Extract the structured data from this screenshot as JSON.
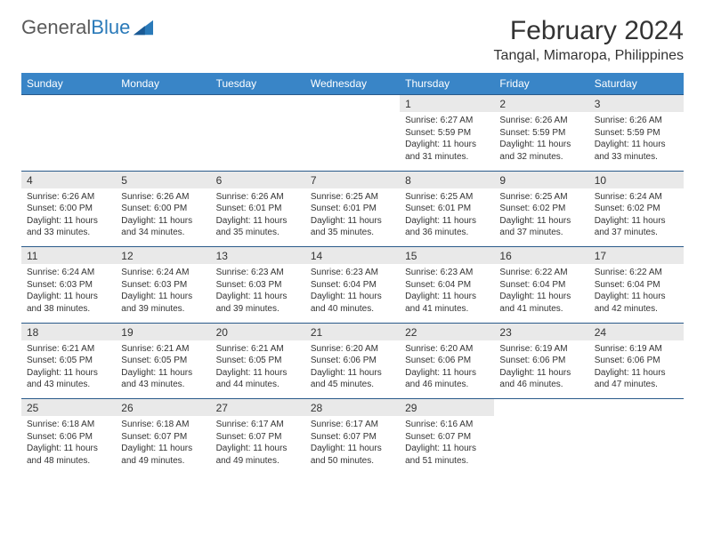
{
  "brand": {
    "name_part1": "General",
    "name_part2": "Blue"
  },
  "header": {
    "month_title": "February 2024",
    "location": "Tangal, Mimaropa, Philippines"
  },
  "colors": {
    "header_bg": "#3985c7",
    "header_text": "#ffffff",
    "daynum_bg": "#e9e9e9",
    "border": "#2a5a8a",
    "text": "#333333",
    "brand_blue": "#2a7ab9",
    "brand_gray": "#5a5a5a",
    "background": "#ffffff"
  },
  "typography": {
    "month_title_size": 30,
    "location_size": 16,
    "dayheader_size": 12,
    "daynum_size": 12,
    "detail_size": 10
  },
  "day_headers": [
    "Sunday",
    "Monday",
    "Tuesday",
    "Wednesday",
    "Thursday",
    "Friday",
    "Saturday"
  ],
  "weeks": [
    {
      "nums": [
        "",
        "",
        "",
        "",
        "1",
        "2",
        "3"
      ],
      "details": [
        null,
        null,
        null,
        null,
        {
          "sunrise": "Sunrise: 6:27 AM",
          "sunset": "Sunset: 5:59 PM",
          "day1": "Daylight: 11 hours",
          "day2": "and 31 minutes."
        },
        {
          "sunrise": "Sunrise: 6:26 AM",
          "sunset": "Sunset: 5:59 PM",
          "day1": "Daylight: 11 hours",
          "day2": "and 32 minutes."
        },
        {
          "sunrise": "Sunrise: 6:26 AM",
          "sunset": "Sunset: 5:59 PM",
          "day1": "Daylight: 11 hours",
          "day2": "and 33 minutes."
        }
      ]
    },
    {
      "nums": [
        "4",
        "5",
        "6",
        "7",
        "8",
        "9",
        "10"
      ],
      "details": [
        {
          "sunrise": "Sunrise: 6:26 AM",
          "sunset": "Sunset: 6:00 PM",
          "day1": "Daylight: 11 hours",
          "day2": "and 33 minutes."
        },
        {
          "sunrise": "Sunrise: 6:26 AM",
          "sunset": "Sunset: 6:00 PM",
          "day1": "Daylight: 11 hours",
          "day2": "and 34 minutes."
        },
        {
          "sunrise": "Sunrise: 6:26 AM",
          "sunset": "Sunset: 6:01 PM",
          "day1": "Daylight: 11 hours",
          "day2": "and 35 minutes."
        },
        {
          "sunrise": "Sunrise: 6:25 AM",
          "sunset": "Sunset: 6:01 PM",
          "day1": "Daylight: 11 hours",
          "day2": "and 35 minutes."
        },
        {
          "sunrise": "Sunrise: 6:25 AM",
          "sunset": "Sunset: 6:01 PM",
          "day1": "Daylight: 11 hours",
          "day2": "and 36 minutes."
        },
        {
          "sunrise": "Sunrise: 6:25 AM",
          "sunset": "Sunset: 6:02 PM",
          "day1": "Daylight: 11 hours",
          "day2": "and 37 minutes."
        },
        {
          "sunrise": "Sunrise: 6:24 AM",
          "sunset": "Sunset: 6:02 PM",
          "day1": "Daylight: 11 hours",
          "day2": "and 37 minutes."
        }
      ]
    },
    {
      "nums": [
        "11",
        "12",
        "13",
        "14",
        "15",
        "16",
        "17"
      ],
      "details": [
        {
          "sunrise": "Sunrise: 6:24 AM",
          "sunset": "Sunset: 6:03 PM",
          "day1": "Daylight: 11 hours",
          "day2": "and 38 minutes."
        },
        {
          "sunrise": "Sunrise: 6:24 AM",
          "sunset": "Sunset: 6:03 PM",
          "day1": "Daylight: 11 hours",
          "day2": "and 39 minutes."
        },
        {
          "sunrise": "Sunrise: 6:23 AM",
          "sunset": "Sunset: 6:03 PM",
          "day1": "Daylight: 11 hours",
          "day2": "and 39 minutes."
        },
        {
          "sunrise": "Sunrise: 6:23 AM",
          "sunset": "Sunset: 6:04 PM",
          "day1": "Daylight: 11 hours",
          "day2": "and 40 minutes."
        },
        {
          "sunrise": "Sunrise: 6:23 AM",
          "sunset": "Sunset: 6:04 PM",
          "day1": "Daylight: 11 hours",
          "day2": "and 41 minutes."
        },
        {
          "sunrise": "Sunrise: 6:22 AM",
          "sunset": "Sunset: 6:04 PM",
          "day1": "Daylight: 11 hours",
          "day2": "and 41 minutes."
        },
        {
          "sunrise": "Sunrise: 6:22 AM",
          "sunset": "Sunset: 6:04 PM",
          "day1": "Daylight: 11 hours",
          "day2": "and 42 minutes."
        }
      ]
    },
    {
      "nums": [
        "18",
        "19",
        "20",
        "21",
        "22",
        "23",
        "24"
      ],
      "details": [
        {
          "sunrise": "Sunrise: 6:21 AM",
          "sunset": "Sunset: 6:05 PM",
          "day1": "Daylight: 11 hours",
          "day2": "and 43 minutes."
        },
        {
          "sunrise": "Sunrise: 6:21 AM",
          "sunset": "Sunset: 6:05 PM",
          "day1": "Daylight: 11 hours",
          "day2": "and 43 minutes."
        },
        {
          "sunrise": "Sunrise: 6:21 AM",
          "sunset": "Sunset: 6:05 PM",
          "day1": "Daylight: 11 hours",
          "day2": "and 44 minutes."
        },
        {
          "sunrise": "Sunrise: 6:20 AM",
          "sunset": "Sunset: 6:06 PM",
          "day1": "Daylight: 11 hours",
          "day2": "and 45 minutes."
        },
        {
          "sunrise": "Sunrise: 6:20 AM",
          "sunset": "Sunset: 6:06 PM",
          "day1": "Daylight: 11 hours",
          "day2": "and 46 minutes."
        },
        {
          "sunrise": "Sunrise: 6:19 AM",
          "sunset": "Sunset: 6:06 PM",
          "day1": "Daylight: 11 hours",
          "day2": "and 46 minutes."
        },
        {
          "sunrise": "Sunrise: 6:19 AM",
          "sunset": "Sunset: 6:06 PM",
          "day1": "Daylight: 11 hours",
          "day2": "and 47 minutes."
        }
      ]
    },
    {
      "nums": [
        "25",
        "26",
        "27",
        "28",
        "29",
        "",
        ""
      ],
      "details": [
        {
          "sunrise": "Sunrise: 6:18 AM",
          "sunset": "Sunset: 6:06 PM",
          "day1": "Daylight: 11 hours",
          "day2": "and 48 minutes."
        },
        {
          "sunrise": "Sunrise: 6:18 AM",
          "sunset": "Sunset: 6:07 PM",
          "day1": "Daylight: 11 hours",
          "day2": "and 49 minutes."
        },
        {
          "sunrise": "Sunrise: 6:17 AM",
          "sunset": "Sunset: 6:07 PM",
          "day1": "Daylight: 11 hours",
          "day2": "and 49 minutes."
        },
        {
          "sunrise": "Sunrise: 6:17 AM",
          "sunset": "Sunset: 6:07 PM",
          "day1": "Daylight: 11 hours",
          "day2": "and 50 minutes."
        },
        {
          "sunrise": "Sunrise: 6:16 AM",
          "sunset": "Sunset: 6:07 PM",
          "day1": "Daylight: 11 hours",
          "day2": "and 51 minutes."
        },
        null,
        null
      ]
    }
  ]
}
